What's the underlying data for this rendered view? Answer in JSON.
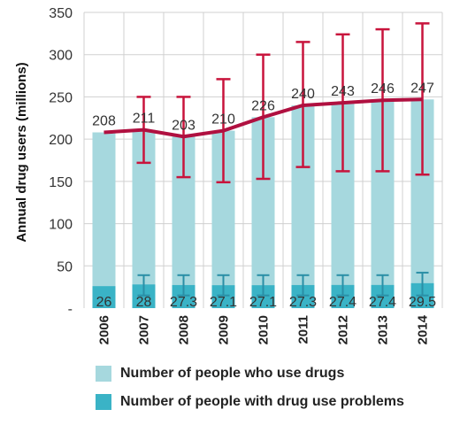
{
  "chart_data": {
    "type": "bar",
    "categories": [
      "2006",
      "2007",
      "2008",
      "2009",
      "2010",
      "2011",
      "2012",
      "2013",
      "2014"
    ],
    "series": [
      {
        "name": "Number of people who use drugs",
        "kind": "bar",
        "color": "#a6d8de",
        "values": [
          208,
          211,
          203,
          210,
          226,
          240,
          243,
          246,
          247
        ],
        "error_low": [
          null,
          172,
          155,
          149,
          153,
          167,
          162,
          162,
          158
        ],
        "error_high": [
          null,
          250,
          250,
          271,
          300,
          315,
          324,
          330,
          337
        ]
      },
      {
        "name": "Number of people with drug use problems",
        "kind": "bar",
        "color": "#3ab3c6",
        "values": [
          26,
          28,
          27.3,
          27.1,
          27.1,
          27.3,
          27.4,
          27.4,
          29.5
        ],
        "error_low": [
          null,
          15,
          15,
          15,
          15,
          15,
          15,
          15,
          15
        ],
        "error_high": [
          null,
          39,
          39,
          39,
          39,
          39,
          39,
          39,
          42
        ]
      },
      {
        "kind": "line",
        "color": "#b01040",
        "values": [
          208,
          211,
          203,
          210,
          226,
          240,
          243,
          246,
          247
        ]
      }
    ],
    "bar_labels": [
      "208",
      "211",
      "203",
      "210",
      "226",
      "240",
      "243",
      "246",
      "247"
    ],
    "problem_labels": [
      "26",
      "28",
      "27.3",
      "27.1",
      "27.1",
      "27.3",
      "27.4",
      "27.4",
      "29.5"
    ],
    "ylabel": "Annual drug users (millions)",
    "xlabel": "",
    "ylim": [
      0,
      350
    ],
    "yticks": [
      0,
      50,
      100,
      150,
      200,
      250,
      300,
      350
    ],
    "ytick_labels": [
      "-",
      "50",
      "100",
      "150",
      "200",
      "250",
      "300",
      "350"
    ],
    "grid": true,
    "legend_position": "bottom"
  }
}
